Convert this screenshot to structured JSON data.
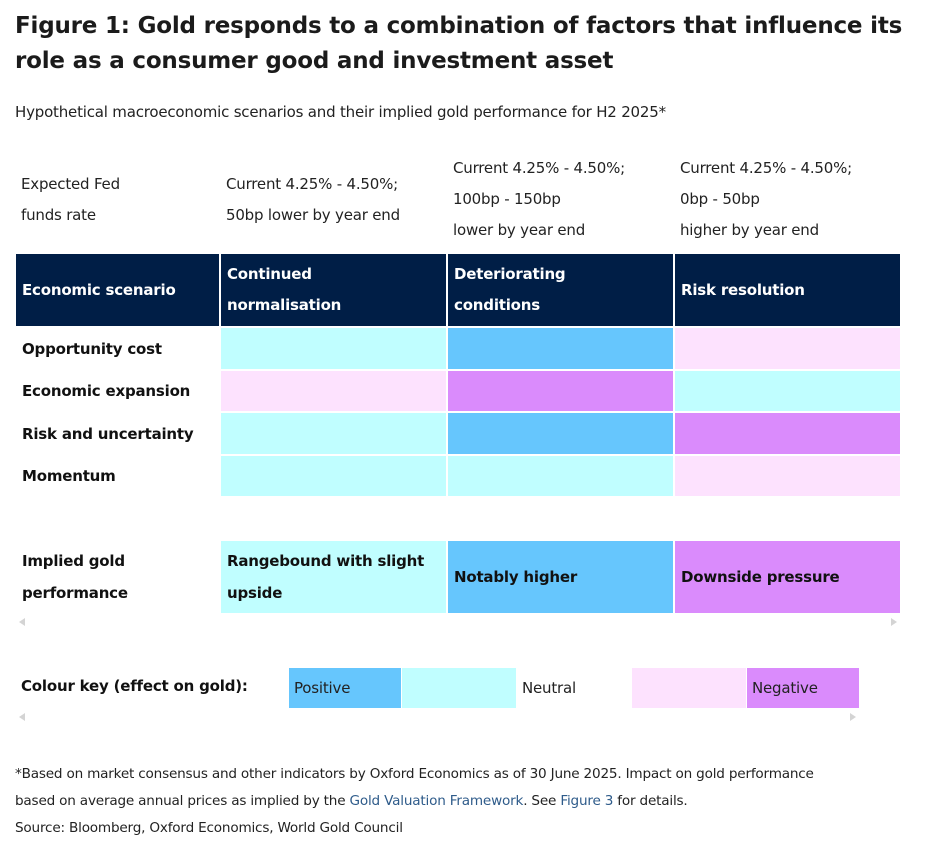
{
  "title": "Figure 1: Gold responds to a combination of factors that influence its role as a consumer good and investment asset",
  "subtitle": "Hypothetical macroeconomic scenarios and their implied gold performance for H2 2025*",
  "fed_rate": {
    "label_line1": "Expected Fed",
    "label_line2": "funds rate",
    "scenario1_line1": "Current 4.25% - 4.50%;",
    "scenario1_line2": "50bp lower by year end",
    "scenario2_line1": "Current 4.25% - 4.50%;",
    "scenario2_line2": "100bp - 150bp",
    "scenario2_line3": "lower by year end",
    "scenario3_line1": "Current 4.25% - 4.50%;",
    "scenario3_line2": "0bp - 50bp",
    "scenario3_line3": "higher by year end"
  },
  "header": {
    "label": "Economic scenario",
    "scenario1_line1": "Continued",
    "scenario1_line2": "normalisation",
    "scenario2_line1": "Deteriorating",
    "scenario2_line2": "conditions",
    "scenario3": "Risk resolution"
  },
  "rows": [
    {
      "label": "Opportunity cost",
      "effects": [
        "neutral",
        "positive",
        "negative-light"
      ]
    },
    {
      "label": "Economic expansion",
      "effects": [
        "negative-light",
        "negative",
        "neutral"
      ]
    },
    {
      "label": "Risk and uncertainty",
      "effects": [
        "neutral",
        "positive",
        "negative"
      ]
    },
    {
      "label": "Momentum",
      "effects": [
        "neutral",
        "neutral",
        "negative-light"
      ]
    }
  ],
  "implied": {
    "label_line1": "Implied gold",
    "label_line2": "performance",
    "scenario1_line1": "Rangebound with slight",
    "scenario1_line2": "upside",
    "scenario2": "Notably higher",
    "scenario3": "Downside pressure"
  },
  "colour_key": {
    "label": "Colour key (effect on gold):",
    "positive": "Positive",
    "neutral": "Neutral",
    "negative": "Negative"
  },
  "colors": {
    "header_bg": "#001e46",
    "positive": "#66c6fd",
    "neutral": "#c0feff",
    "negative_light": "#fde2fe",
    "negative": "#da8bfc"
  },
  "footnote": {
    "line1": "*Based on market consensus and other indicators by Oxford Economics as of 30 June 2025. Impact on gold performance",
    "line2_pre": "based on average annual prices as implied by the ",
    "link1": "Gold Valuation Framework",
    "line2_mid": ". See ",
    "link2": "Figure 3",
    "line2_post": " for details.",
    "source": "Source: Bloomberg, Oxford Economics, World Gold Council"
  }
}
